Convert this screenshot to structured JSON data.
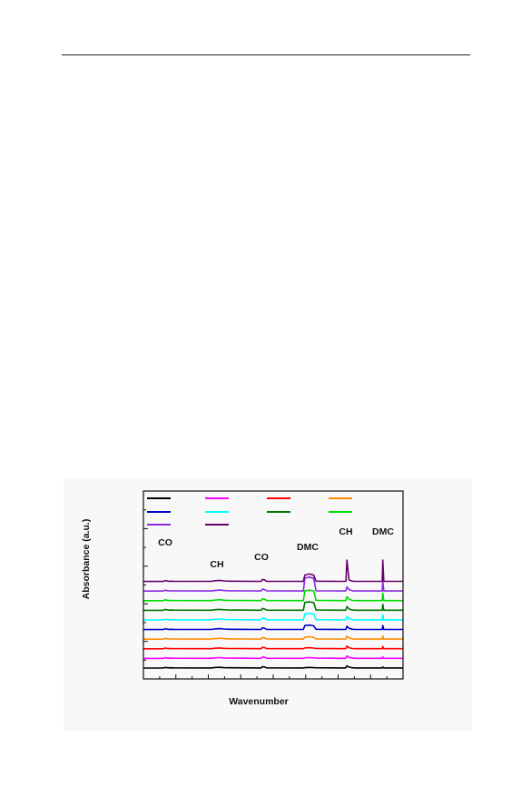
{
  "page": {
    "background": "#ffffff",
    "panel_background": "#f8f8f8"
  },
  "chart_data": {
    "type": "line",
    "title": "",
    "xlabel": "Wavenumber",
    "ylabel": "Absorbance (a.u.)",
    "xlim": [
      0,
      100
    ],
    "tick_labels_shown": false,
    "grid": false,
    "legend": {
      "placement": "top-left",
      "columns": 4,
      "entry_labels_shown": false,
      "rows": [
        [
          "#000000",
          "#ff00ff",
          "#ff0000",
          "#ff8c00"
        ],
        [
          "#0000cc",
          "#00ffff",
          "#007700",
          "#00dd00"
        ],
        [
          "#8a2be2",
          "#6a006a"
        ]
      ]
    },
    "annotations": [
      {
        "text": "CO",
        "x": 8.5
      },
      {
        "text": "CH",
        "x": 28.5
      },
      {
        "text": "CO",
        "x": 45.5
      },
      {
        "text": "DMC",
        "x": 63.5
      },
      {
        "text": "CH",
        "x": 78.5
      },
      {
        "text": "DMC",
        "x": 92
      }
    ],
    "series": [
      {
        "color": "#000000",
        "offset": 0.0,
        "values": [
          0,
          0,
          0.03,
          0.12,
          0.03,
          0.05,
          0.03,
          0.02,
          0.12,
          0.15,
          0.08,
          0.05,
          0.03,
          0.02,
          0.03,
          0.25,
          0.22,
          0.03,
          0.01,
          0.02,
          0.08,
          0.12,
          0.07,
          0.05,
          0.04,
          0.02,
          0.02,
          0.05,
          0.45,
          0.18,
          0.05,
          0.02,
          0.02,
          0.02,
          0.02,
          0.02,
          0.2,
          0.02,
          0.02
        ]
      },
      {
        "color": "#ff00ff",
        "offset": 1.0,
        "values": [
          0,
          0,
          0.04,
          0.14,
          0.04,
          0.06,
          0.03,
          0.02,
          0.13,
          0.16,
          0.09,
          0.05,
          0.03,
          0.02,
          0.03,
          0.28,
          0.24,
          0.03,
          0.01,
          0.02,
          0.12,
          0.16,
          0.1,
          0.05,
          0.04,
          0.02,
          0.02,
          0.05,
          0.5,
          0.2,
          0.05,
          0.02,
          0.02,
          0.02,
          0.02,
          0.02,
          0.3,
          0.02,
          0.02
        ]
      },
      {
        "color": "#ff0000",
        "offset": 2.0,
        "values": [
          0,
          0,
          0.04,
          0.15,
          0.04,
          0.06,
          0.03,
          0.02,
          0.13,
          0.17,
          0.09,
          0.05,
          0.03,
          0.02,
          0.03,
          0.3,
          0.26,
          0.03,
          0.01,
          0.02,
          0.18,
          0.22,
          0.14,
          0.05,
          0.04,
          0.02,
          0.02,
          0.05,
          0.55,
          0.22,
          0.05,
          0.02,
          0.02,
          0.02,
          0.02,
          0.02,
          0.45,
          0.02,
          0.02
        ]
      },
      {
        "color": "#ff8c00",
        "offset": 3.0,
        "values": [
          0,
          0,
          0.04,
          0.16,
          0.04,
          0.06,
          0.03,
          0.02,
          0.14,
          0.18,
          0.1,
          0.05,
          0.03,
          0.02,
          0.03,
          0.32,
          0.27,
          0.03,
          0.01,
          0.02,
          0.4,
          0.5,
          0.35,
          0.05,
          0.04,
          0.02,
          0.02,
          0.05,
          0.6,
          0.24,
          0.05,
          0.02,
          0.02,
          0.02,
          0.02,
          0.02,
          0.6,
          0.02,
          0.02
        ]
      },
      {
        "color": "#0000cc",
        "offset": 4.0,
        "values": [
          0,
          0,
          0.04,
          0.17,
          0.04,
          0.06,
          0.03,
          0.02,
          0.14,
          0.18,
          0.1,
          0.05,
          0.03,
          0.02,
          0.03,
          0.34,
          0.28,
          0.03,
          0.01,
          0.02,
          0.8,
          0.9,
          0.75,
          0.05,
          0.04,
          0.02,
          0.02,
          0.05,
          0.65,
          0.25,
          0.05,
          0.02,
          0.02,
          0.02,
          0.02,
          0.02,
          0.8,
          0.02,
          0.02
        ]
      },
      {
        "color": "#00ffff",
        "offset": 5.0,
        "values": [
          0,
          0,
          0.04,
          0.17,
          0.04,
          0.06,
          0.03,
          0.02,
          0.14,
          0.19,
          0.1,
          0.05,
          0.03,
          0.02,
          0.03,
          0.35,
          0.29,
          0.03,
          0.01,
          0.02,
          1.2,
          1.3,
          1.15,
          0.05,
          0.04,
          0.02,
          0.02,
          0.05,
          0.7,
          0.26,
          0.05,
          0.02,
          0.02,
          0.02,
          0.02,
          0.02,
          1.0,
          0.02,
          0.02
        ]
      },
      {
        "color": "#007700",
        "offset": 6.0,
        "values": [
          0,
          0,
          0.04,
          0.18,
          0.04,
          0.06,
          0.03,
          0.02,
          0.15,
          0.19,
          0.1,
          0.05,
          0.03,
          0.02,
          0.03,
          0.36,
          0.3,
          0.03,
          0.01,
          0.02,
          1.6,
          1.7,
          1.55,
          0.05,
          0.04,
          0.02,
          0.02,
          0.05,
          0.75,
          0.27,
          0.05,
          0.02,
          0.02,
          0.02,
          0.02,
          0.02,
          1.2,
          0.02,
          0.02
        ]
      },
      {
        "color": "#00dd00",
        "offset": 7.0,
        "values": [
          0,
          0,
          0.04,
          0.18,
          0.04,
          0.06,
          0.03,
          0.02,
          0.15,
          0.2,
          0.1,
          0.05,
          0.03,
          0.02,
          0.03,
          0.37,
          0.31,
          0.03,
          0.01,
          0.02,
          2.0,
          2.1,
          1.95,
          0.05,
          0.04,
          0.02,
          0.02,
          0.05,
          0.8,
          0.28,
          0.05,
          0.02,
          0.02,
          0.02,
          0.02,
          0.02,
          1.5,
          0.02,
          0.02
        ]
      },
      {
        "color": "#8a2be2",
        "offset": 8.0,
        "values": [
          0,
          0,
          0.04,
          0.19,
          0.04,
          0.06,
          0.03,
          0.02,
          0.15,
          0.2,
          0.11,
          0.05,
          0.03,
          0.02,
          0.03,
          0.38,
          0.32,
          0.03,
          0.01,
          0.02,
          2.6,
          2.8,
          2.55,
          0.05,
          0.04,
          0.02,
          0.02,
          0.05,
          0.85,
          0.29,
          0.05,
          0.02,
          0.02,
          0.02,
          0.02,
          0.02,
          2.0,
          0.02,
          0.02
        ]
      },
      {
        "color": "#6a006a",
        "offset": 9.0,
        "values": [
          0,
          0,
          0.04,
          0.19,
          0.04,
          0.06,
          0.03,
          0.02,
          0.16,
          0.21,
          0.11,
          0.05,
          0.03,
          0.02,
          0.03,
          0.4,
          0.33,
          0.03,
          0.01,
          0.02,
          1.3,
          1.5,
          1.25,
          0.05,
          0.04,
          0.02,
          0.02,
          0.05,
          4.3,
          0.3,
          0.05,
          0.02,
          0.02,
          0.02,
          0.02,
          0.02,
          4.3,
          0.02,
          0.02
        ]
      }
    ],
    "x": [
      0,
      7,
      7.8,
      8.5,
      9.5,
      10.5,
      11.5,
      26,
      28,
      29.5,
      31,
      33,
      40,
      45,
      45.4,
      45.8,
      46.6,
      47.5,
      61,
      61.6,
      62.2,
      64,
      65.6,
      66.5,
      73,
      76,
      77.6,
      78,
      78.4,
      79.2,
      80.5,
      82,
      90,
      91.6,
      91.8,
      92,
      92.2,
      92.6,
      100
    ]
  }
}
